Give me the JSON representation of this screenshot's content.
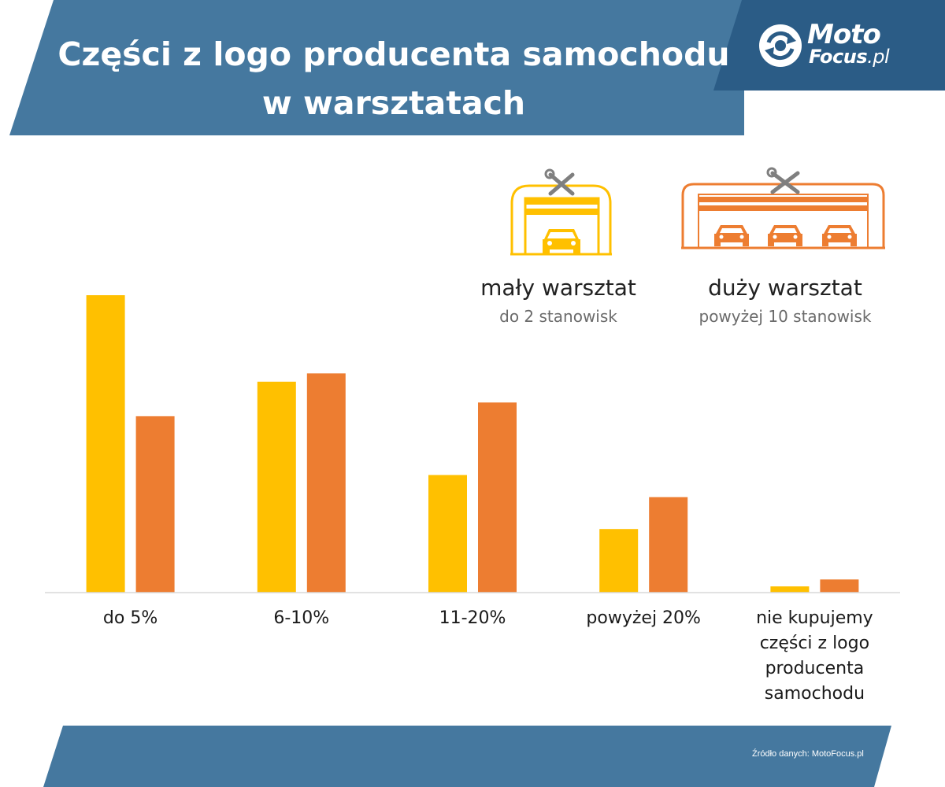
{
  "header": {
    "title_line1": "Części z logo producenta samochodu",
    "title_line2": "w warsztatach"
  },
  "logo": {
    "word1": "Moto",
    "word2": "Focus",
    "domain": ".pl",
    "icon": "refresh-circle-icon"
  },
  "legend": {
    "small": {
      "name": "mały warsztat",
      "sub": "do 2 stanowisk",
      "icon": "small-garage-icon",
      "color": "#FFC000"
    },
    "large": {
      "name": "duży warsztat",
      "sub": "powyżej 10 stanowisk",
      "icon": "large-garage-icon",
      "color": "#ED7D31"
    }
  },
  "chart_data": {
    "type": "bar",
    "title": "Części z logo producenta samochodu w warsztatach",
    "categories": [
      "do 5%",
      "6-10%",
      "11-20%",
      "powyżej 20%",
      "nie kupujemy części z logo producenta samochodu"
    ],
    "series": [
      {
        "name": "mały warsztat",
        "color": "#FFC000",
        "values": [
          43,
          30.5,
          17,
          9.2,
          0.9
        ]
      },
      {
        "name": "duży warsztat",
        "color": "#ED7D31",
        "values": [
          25.5,
          31.7,
          27.5,
          13.8,
          1.9
        ]
      }
    ],
    "ylim": [
      0,
      47
    ],
    "grid": false,
    "y_axis_visible": false,
    "legend_position": "top-right"
  },
  "footer": {
    "source": "Źródło danych: MotoFocus.pl"
  },
  "colors": {
    "banner": "#45789F",
    "logo_panel": "#2B5C86",
    "small_workshop": "#FFC000",
    "large_workshop": "#ED7D31",
    "icon_gray": "#7F7F7F"
  }
}
